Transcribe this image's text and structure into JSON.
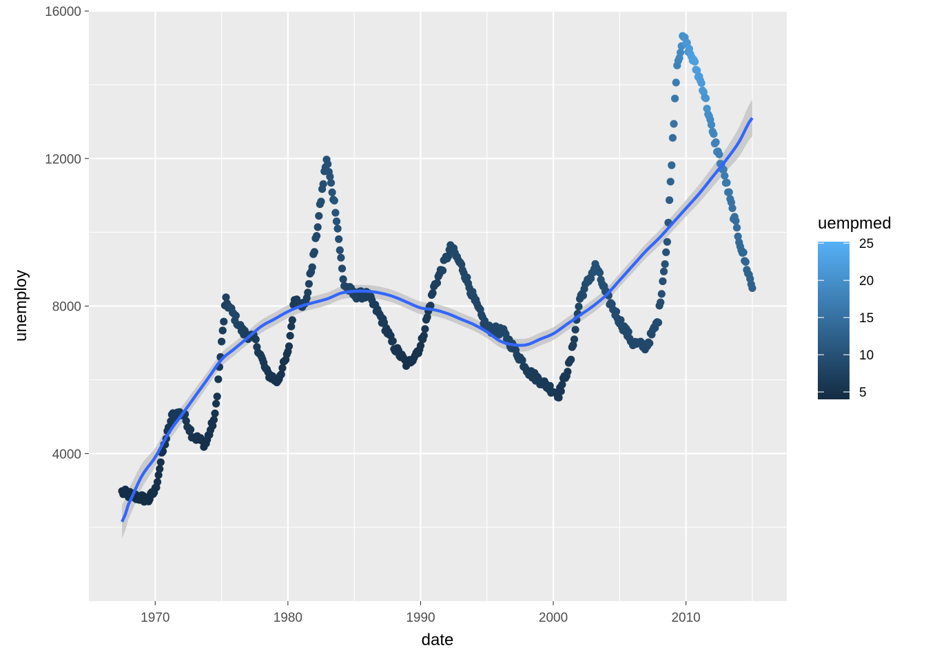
{
  "chart_data": {
    "type": "scatter",
    "xlabel": "date",
    "ylabel": "unemploy",
    "xlim": [
      1965,
      2017.6
    ],
    "ylim": [
      0,
      16000
    ],
    "x_ticks": [
      1970,
      1980,
      1990,
      2000,
      2010
    ],
    "y_ticks": [
      4000,
      8000,
      12000,
      16000
    ],
    "grid": true,
    "legend": {
      "title": "uempmed",
      "placement": "right",
      "type": "colorbar",
      "range": [
        4,
        25.2
      ],
      "ticks": [
        5,
        10,
        15,
        20,
        25
      ],
      "colors": [
        "#132B43",
        "#56B1F7"
      ]
    },
    "colors": {
      "panel_bg": "#EBEBEB",
      "grid_major": "#FFFFFF",
      "smooth_line": "#3366FF",
      "smooth_band": "#C0C0C0"
    },
    "anchors": [
      [
        1967.5,
        2950,
        4.5
      ],
      [
        1968.3,
        2850,
        4.4
      ],
      [
        1969.5,
        2750,
        4.4
      ],
      [
        1970.0,
        3000,
        4.6
      ],
      [
        1970.6,
        4100,
        5.2
      ],
      [
        1971.3,
        5050,
        6.2
      ],
      [
        1972.1,
        5100,
        6.2
      ],
      [
        1972.8,
        4500,
        5.5
      ],
      [
        1973.8,
        4250,
        4.9
      ],
      [
        1974.5,
        5000,
        5.2
      ],
      [
        1975.3,
        8150,
        7.5
      ],
      [
        1976.0,
        7700,
        8.5
      ],
      [
        1976.6,
        7300,
        7.5
      ],
      [
        1977.5,
        7100,
        6.5
      ],
      [
        1978.4,
        6200,
        6.0
      ],
      [
        1979.2,
        5950,
        5.2
      ],
      [
        1980.0,
        6700,
        5.5
      ],
      [
        1980.5,
        8200,
        6.5
      ],
      [
        1981.3,
        8000,
        7.0
      ],
      [
        1982.0,
        9500,
        8.5
      ],
      [
        1982.9,
        12000,
        10.0
      ],
      [
        1983.6,
        10600,
        10.5
      ],
      [
        1984.2,
        8600,
        8.5
      ],
      [
        1985.0,
        8300,
        7.5
      ],
      [
        1986.0,
        8300,
        7.0
      ],
      [
        1987.0,
        7700,
        6.5
      ],
      [
        1988.0,
        6900,
        5.8
      ],
      [
        1989.0,
        6400,
        4.9
      ],
      [
        1990.0,
        6900,
        5.3
      ],
      [
        1991.0,
        8500,
        7.0
      ],
      [
        1992.3,
        9600,
        8.5
      ],
      [
        1993.2,
        9000,
        8.3
      ],
      [
        1994.0,
        8200,
        8.5
      ],
      [
        1995.0,
        7400,
        8.0
      ],
      [
        1996.2,
        7300,
        8.4
      ],
      [
        1997.3,
        6700,
        7.6
      ],
      [
        1998.2,
        6200,
        6.7
      ],
      [
        1999.3,
        5900,
        6.3
      ],
      [
        2000.4,
        5600,
        5.9
      ],
      [
        2001.3,
        6500,
        6.2
      ],
      [
        2002.0,
        8200,
        8.5
      ],
      [
        2003.2,
        9100,
        10.0
      ],
      [
        2004.0,
        8300,
        9.5
      ],
      [
        2005.0,
        7600,
        9.0
      ],
      [
        2006.0,
        7000,
        8.5
      ],
      [
        2007.0,
        6900,
        8.5
      ],
      [
        2007.9,
        7600,
        9.0
      ],
      [
        2008.6,
        9800,
        10.5
      ],
      [
        2009.3,
        14500,
        17.5
      ],
      [
        2009.8,
        15300,
        20.0
      ],
      [
        2010.5,
        14700,
        22.5
      ],
      [
        2011.3,
        13900,
        21.5
      ],
      [
        2012.0,
        12700,
        18.5
      ],
      [
        2013.0,
        11400,
        16.5
      ],
      [
        2014.0,
        9800,
        14.0
      ],
      [
        2015.0,
        8500,
        12.5
      ]
    ],
    "smooth_curve": [
      [
        1967.5,
        2150
      ],
      [
        1968.0,
        2650
      ],
      [
        1969.0,
        3400
      ],
      [
        1970.0,
        3900
      ],
      [
        1971.0,
        4550
      ],
      [
        1972.0,
        5050
      ],
      [
        1973.0,
        5550
      ],
      [
        1974.0,
        6050
      ],
      [
        1975.0,
        6550
      ],
      [
        1976.0,
        6850
      ],
      [
        1977.0,
        7150
      ],
      [
        1978.0,
        7450
      ],
      [
        1979.0,
        7650
      ],
      [
        1980.0,
        7850
      ],
      [
        1981.0,
        8000
      ],
      [
        1982.0,
        8100
      ],
      [
        1983.0,
        8200
      ],
      [
        1984.0,
        8350
      ],
      [
        1985.0,
        8400
      ],
      [
        1986.0,
        8400
      ],
      [
        1987.0,
        8350
      ],
      [
        1988.0,
        8250
      ],
      [
        1989.0,
        8100
      ],
      [
        1990.0,
        7950
      ],
      [
        1991.0,
        7900
      ],
      [
        1992.0,
        7800
      ],
      [
        1993.0,
        7650
      ],
      [
        1994.0,
        7500
      ],
      [
        1995.0,
        7300
      ],
      [
        1996.0,
        7050
      ],
      [
        1997.0,
        6950
      ],
      [
        1998.0,
        6950
      ],
      [
        1999.0,
        7100
      ],
      [
        2000.0,
        7250
      ],
      [
        2001.0,
        7500
      ],
      [
        2002.0,
        7750
      ],
      [
        2003.0,
        8000
      ],
      [
        2004.0,
        8300
      ],
      [
        2005.0,
        8700
      ],
      [
        2006.0,
        9100
      ],
      [
        2007.0,
        9500
      ],
      [
        2008.0,
        9850
      ],
      [
        2009.0,
        10250
      ],
      [
        2010.0,
        10650
      ],
      [
        2011.0,
        11050
      ],
      [
        2012.0,
        11500
      ],
      [
        2013.0,
        11950
      ],
      [
        2014.0,
        12450
      ],
      [
        2015.0,
        13100
      ]
    ],
    "smooth_band_halfwidth": [
      [
        1967.5,
        450
      ],
      [
        1970.0,
        250
      ],
      [
        1975.0,
        180
      ],
      [
        1985.0,
        170
      ],
      [
        1995.0,
        170
      ],
      [
        2005.0,
        180
      ],
      [
        2010.0,
        220
      ],
      [
        2013.0,
        300
      ],
      [
        2015.0,
        500
      ]
    ]
  }
}
